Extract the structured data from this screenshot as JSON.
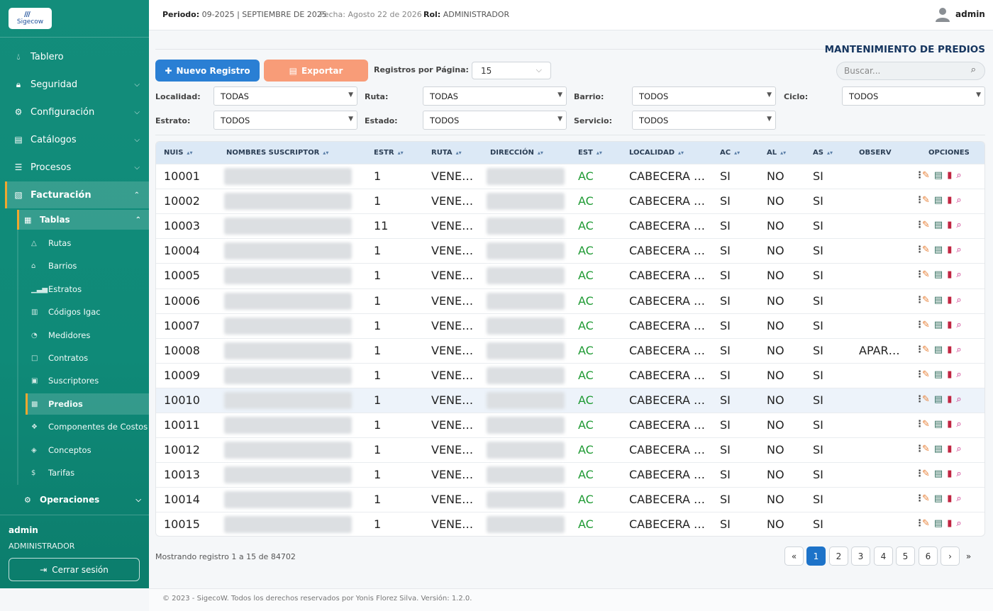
{
  "app": {
    "logo_text": "Sigecow",
    "logo_mark": "///"
  },
  "header": {
    "periodo_label": "Periodo:",
    "periodo_value": "09-2025 | SEPTIEMBRE DE 2025",
    "fecha": "Fecha: Agosto 22 de 2026",
    "rol_label": "Rol:",
    "rol_value": "ADMINISTRADOR",
    "user": "admin"
  },
  "sidebar": {
    "items": [
      {
        "label": "Tablero",
        "icon": "tint-icon"
      },
      {
        "label": "Seguridad",
        "icon": "lock-icon"
      },
      {
        "label": "Configuración",
        "icon": "gears-icon"
      },
      {
        "label": "Catálogos",
        "icon": "book-icon"
      },
      {
        "label": "Procesos",
        "icon": "list-icon"
      },
      {
        "label": "Facturación",
        "icon": "file-icon"
      }
    ],
    "tablas_label": "Tablas",
    "leaves": [
      {
        "label": "Rutas"
      },
      {
        "label": "Barrios"
      },
      {
        "label": "Estratos"
      },
      {
        "label": "Códigos Igac"
      },
      {
        "label": "Medidores"
      },
      {
        "label": "Contratos"
      },
      {
        "label": "Suscriptores"
      },
      {
        "label": "Predios"
      },
      {
        "label": "Componentes de Costos"
      },
      {
        "label": "Conceptos"
      },
      {
        "label": "Tarifas"
      }
    ],
    "operaciones_label": "Operaciones",
    "user_name": "admin",
    "user_role": "ADMINISTRADOR",
    "logout_label": "Cerrar sesión"
  },
  "main": {
    "title": "MANTENIMIENTO DE PREDIOS",
    "new_button": "Nuevo Registro",
    "export_button": "Exportar",
    "rpp_label": "Registros por Página:",
    "rpp_value": "15",
    "search_placeholder": "Buscar...",
    "filters": {
      "localidad_label": "Localidad:",
      "localidad_value": "TODAS",
      "ruta_label": "Ruta:",
      "ruta_value": "TODAS",
      "barrio_label": "Barrio:",
      "barrio_value": "TODOS",
      "ciclo_label": "Ciclo:",
      "ciclo_value": "TODOS",
      "estrato_label": "Estrato:",
      "estrato_value": "TODOS",
      "estado_label": "Estado:",
      "estado_value": "TODOS",
      "servicio_label": "Servicio:",
      "servicio_value": "TODOS"
    },
    "columns": [
      "NUIS",
      "NOMBRES SUSCRIPTOR",
      "ESTR",
      "RUTA",
      "DIRECCIÓN",
      "EST",
      "LOCALIDAD",
      "AC",
      "AL",
      "AS",
      "OBSERV",
      "OPCIONES"
    ],
    "rows": [
      {
        "nuis": "10001",
        "estr": "1",
        "ruta": "VENE…",
        "est": "AC",
        "localidad": "CABECERA …",
        "ac": "SI",
        "al": "NO",
        "as": "SI",
        "observ": ""
      },
      {
        "nuis": "10002",
        "estr": "1",
        "ruta": "VENE…",
        "est": "AC",
        "localidad": "CABECERA …",
        "ac": "SI",
        "al": "NO",
        "as": "SI",
        "observ": ""
      },
      {
        "nuis": "10003",
        "estr": "11",
        "ruta": "VENE…",
        "est": "AC",
        "localidad": "CABECERA …",
        "ac": "SI",
        "al": "NO",
        "as": "SI",
        "observ": ""
      },
      {
        "nuis": "10004",
        "estr": "1",
        "ruta": "VENE…",
        "est": "AC",
        "localidad": "CABECERA …",
        "ac": "SI",
        "al": "NO",
        "as": "SI",
        "observ": ""
      },
      {
        "nuis": "10005",
        "estr": "1",
        "ruta": "VENE…",
        "est": "AC",
        "localidad": "CABECERA …",
        "ac": "SI",
        "al": "NO",
        "as": "SI",
        "observ": ""
      },
      {
        "nuis": "10006",
        "estr": "1",
        "ruta": "VENE…",
        "est": "AC",
        "localidad": "CABECERA …",
        "ac": "SI",
        "al": "NO",
        "as": "SI",
        "observ": ""
      },
      {
        "nuis": "10007",
        "estr": "1",
        "ruta": "VENE…",
        "est": "AC",
        "localidad": "CABECERA …",
        "ac": "SI",
        "al": "NO",
        "as": "SI",
        "observ": ""
      },
      {
        "nuis": "10008",
        "estr": "1",
        "ruta": "VENE…",
        "est": "AC",
        "localidad": "CABECERA …",
        "ac": "SI",
        "al": "NO",
        "as": "SI",
        "observ": "APAR…"
      },
      {
        "nuis": "10009",
        "estr": "1",
        "ruta": "VENE…",
        "est": "AC",
        "localidad": "CABECERA …",
        "ac": "SI",
        "al": "NO",
        "as": "SI",
        "observ": ""
      },
      {
        "nuis": "10010",
        "estr": "1",
        "ruta": "VENE…",
        "est": "AC",
        "localidad": "CABECERA …",
        "ac": "SI",
        "al": "NO",
        "as": "SI",
        "observ": ""
      },
      {
        "nuis": "10011",
        "estr": "1",
        "ruta": "VENE…",
        "est": "AC",
        "localidad": "CABECERA …",
        "ac": "SI",
        "al": "NO",
        "as": "SI",
        "observ": ""
      },
      {
        "nuis": "10012",
        "estr": "1",
        "ruta": "VENE…",
        "est": "AC",
        "localidad": "CABECERA …",
        "ac": "SI",
        "al": "NO",
        "as": "SI",
        "observ": ""
      },
      {
        "nuis": "10013",
        "estr": "1",
        "ruta": "VENE…",
        "est": "AC",
        "localidad": "CABECERA …",
        "ac": "SI",
        "al": "NO",
        "as": "SI",
        "observ": ""
      },
      {
        "nuis": "10014",
        "estr": "1",
        "ruta": "VENE…",
        "est": "AC",
        "localidad": "CABECERA …",
        "ac": "SI",
        "al": "NO",
        "as": "SI",
        "observ": ""
      },
      {
        "nuis": "10015",
        "estr": "1",
        "ruta": "VENE…",
        "est": "AC",
        "localidad": "CABECERA …",
        "ac": "SI",
        "al": "NO",
        "as": "SI",
        "observ": ""
      }
    ],
    "showing": "Mostrando registro 1 a 15 de 84702",
    "pagination": [
      "«",
      "1",
      "2",
      "3",
      "4",
      "5",
      "6",
      "›",
      "»"
    ],
    "current_page": "1"
  },
  "footer": "© 2023 - SigecoW. Todos los derechos reservados por Yonis Florez Silva. Versión: 1.2.0.",
  "colors": {
    "sidebar": "#138d7b",
    "accent": "#2a7fd4",
    "export": "#f89c78",
    "status_ac": "#1e9a33",
    "header_row": "#dce9f6"
  }
}
